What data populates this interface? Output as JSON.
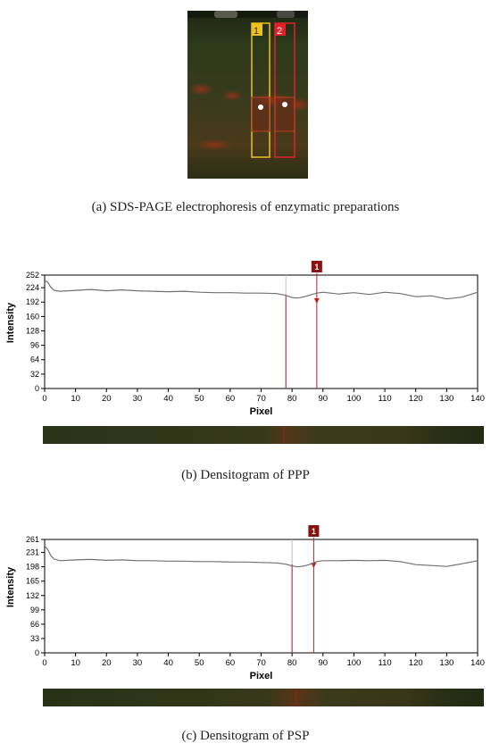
{
  "gel": {
    "lanes": [
      {
        "label": "1",
        "color": "#f0c020"
      },
      {
        "label": "2",
        "color": "#e0202a"
      }
    ]
  },
  "captions": {
    "a": "(a) SDS-PAGE electrophoresis of enzymatic preparations",
    "b": "(b) Densitogram of PPP",
    "c": "(c) Densitogram of PSP"
  },
  "chart_data": [
    {
      "type": "line",
      "title": "",
      "xlabel": "Pixel",
      "ylabel": "Intensity",
      "xlim": [
        0,
        140
      ],
      "ylim": [
        0,
        252
      ],
      "xticks": [
        0,
        10,
        20,
        30,
        40,
        50,
        60,
        70,
        80,
        90,
        100,
        110,
        120,
        130,
        140
      ],
      "yticks": [
        0,
        32,
        64,
        96,
        128,
        160,
        192,
        224,
        252
      ],
      "grid": false,
      "line_color": "#707070",
      "marker": {
        "label": "1",
        "x": 88,
        "color": "#8b1010"
      },
      "band_boundary_x": 78,
      "series": [
        {
          "x": [
            0,
            1,
            2,
            3,
            5,
            10,
            15,
            20,
            25,
            30,
            35,
            40,
            45,
            50,
            55,
            60,
            65,
            70,
            75,
            78,
            80,
            82,
            84,
            86,
            88,
            90,
            95,
            100,
            105,
            110,
            115,
            120,
            125,
            130,
            135,
            140
          ],
          "y": [
            240,
            236,
            225,
            218,
            216,
            218,
            220,
            217,
            219,
            217,
            216,
            215,
            216,
            214,
            213,
            213,
            212,
            212,
            211,
            207,
            202,
            201,
            204,
            208,
            212,
            214,
            210,
            213,
            209,
            214,
            211,
            204,
            206,
            199,
            203,
            214
          ]
        }
      ]
    },
    {
      "type": "line",
      "title": "",
      "xlabel": "Pixel",
      "ylabel": "Intensity",
      "xlim": [
        0,
        140
      ],
      "ylim": [
        0,
        261
      ],
      "xticks": [
        0,
        10,
        20,
        30,
        40,
        50,
        60,
        70,
        80,
        90,
        100,
        110,
        120,
        130,
        140
      ],
      "yticks": [
        0,
        33,
        66,
        99,
        132,
        165,
        198,
        231,
        261
      ],
      "grid": false,
      "line_color": "#707070",
      "marker": {
        "label": "1",
        "x": 87,
        "color": "#8b1010"
      },
      "band_boundary_x": 80,
      "series": [
        {
          "x": [
            0,
            1,
            2,
            3,
            5,
            10,
            15,
            20,
            25,
            30,
            35,
            40,
            45,
            50,
            55,
            60,
            65,
            70,
            75,
            78,
            80,
            82,
            84,
            86,
            88,
            90,
            95,
            100,
            105,
            110,
            115,
            120,
            125,
            130,
            135,
            140
          ],
          "y": [
            246,
            238,
            224,
            216,
            212,
            214,
            215,
            213,
            214,
            212,
            212,
            211,
            211,
            210,
            210,
            209,
            209,
            208,
            207,
            204,
            200,
            198,
            200,
            204,
            210,
            212,
            212,
            213,
            212,
            213,
            210,
            203,
            201,
            199,
            205,
            212
          ]
        }
      ]
    }
  ]
}
